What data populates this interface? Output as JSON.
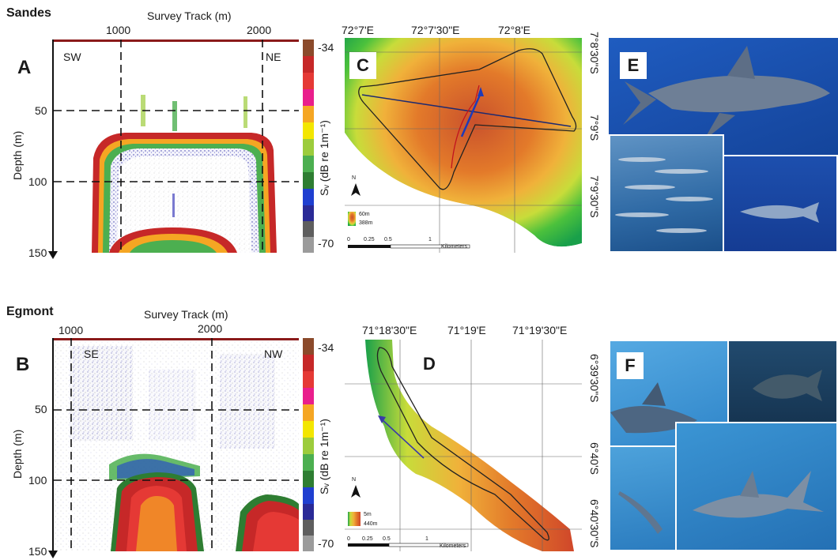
{
  "top": {
    "site": "Sandes",
    "track_label": "Survey Track (m)",
    "track_ticks": [
      "1000",
      "2000"
    ],
    "depth_label": "Depth (m)",
    "depth_ticks": [
      "50",
      "100",
      "150"
    ],
    "dir_left": "SW",
    "dir_right": "NE",
    "panel_echo": "A",
    "panel_map": "C",
    "panel_photo": "E",
    "cbar_max": "-34",
    "cbar_min": "-70",
    "cbar_label": "Sᵥ (dB re 1m⁻¹)",
    "map_lon": [
      "72°7'E",
      "72°7'30\"E",
      "72°8'E"
    ],
    "map_lat": [
      "7°8'30\"S",
      "7°9'S",
      "7°9'30\"S"
    ],
    "legend_top": "60m",
    "legend_bottom": "388m",
    "scale_ticks": [
      "0",
      "0.25",
      "0.5",
      "1"
    ],
    "scale_unit": "Kilometers"
  },
  "bottom": {
    "site": "Egmont",
    "track_label": "Survey Track (m)",
    "track_ticks": [
      "1000",
      "2000"
    ],
    "depth_label": "Depth (m)",
    "depth_ticks": [
      "50",
      "100",
      "150"
    ],
    "dir_left": "SE",
    "dir_right": "NW",
    "panel_echo": "B",
    "panel_map": "D",
    "panel_photo": "F",
    "cbar_max": "-34",
    "cbar_min": "-70",
    "cbar_label": "Sᵥ (dB re 1m⁻¹)",
    "map_lon": [
      "71°18'30\"E",
      "71°19'E",
      "71°19'30\"E"
    ],
    "map_lat": [
      "6°39'30\"S",
      "6°40'S",
      "6°40'30\"S"
    ],
    "legend_top": "5m",
    "legend_bottom": "440m",
    "scale_ticks": [
      "0",
      "0.25",
      "0.5",
      "1"
    ],
    "scale_unit": "Kilometers"
  },
  "north_label": "N",
  "colors": {
    "cbar": [
      "#9b9b9b",
      "#5e5e5e",
      "#2a2a96",
      "#1f3fd0",
      "#2e7d32",
      "#4caf50",
      "#9ccc3c",
      "#f3e600",
      "#f5a623",
      "#e91e8c",
      "#e53935",
      "#c62828",
      "#8b4a2b"
    ],
    "map_shallow": "#d0472a",
    "map_deep": "#3fbf3a",
    "photo_blue": "#1c4fa8"
  }
}
